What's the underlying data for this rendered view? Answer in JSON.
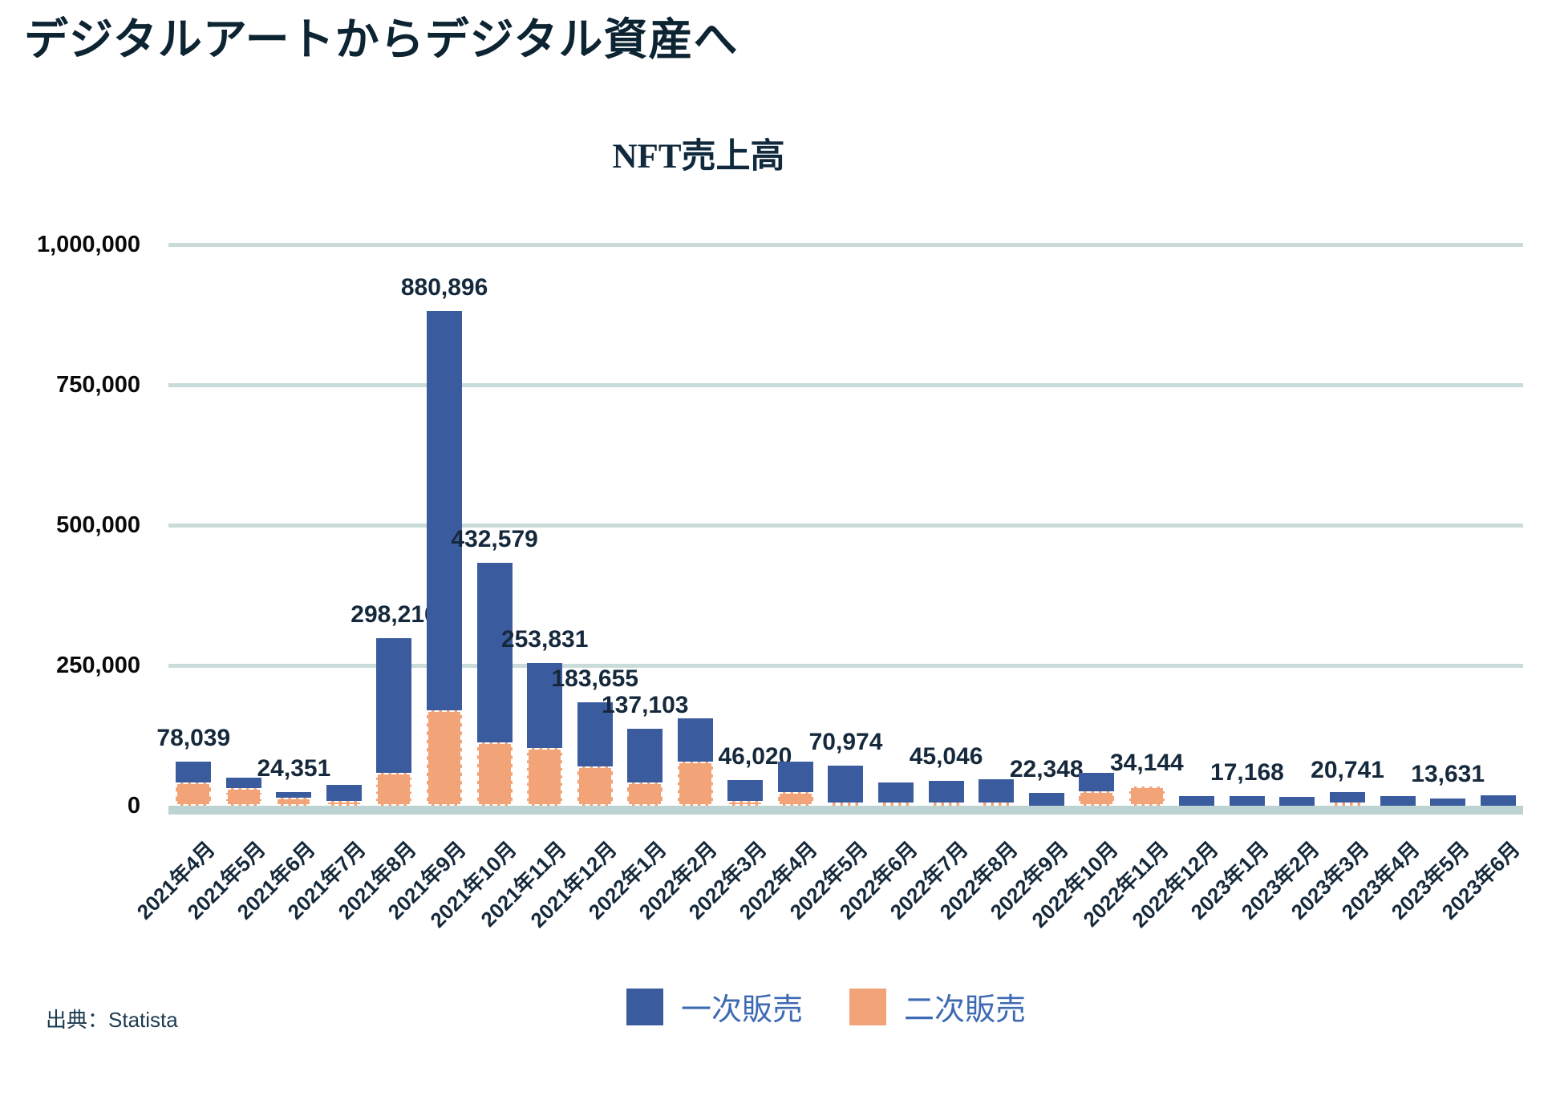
{
  "page": {
    "title": "デジタルアートからデジタル資産へ"
  },
  "chart_data": {
    "type": "bar",
    "stacked": true,
    "title": "NFT売上高",
    "xlabel": "",
    "ylabel": "",
    "ylim": [
      0,
      1000000
    ],
    "grid": true,
    "legend_position": "bottom",
    "y_ticks": [
      {
        "value": 1000000,
        "label": "1,000,000"
      },
      {
        "value": 750000,
        "label": "750,000"
      },
      {
        "value": 500000,
        "label": "500,000"
      },
      {
        "value": 250000,
        "label": "250,000"
      },
      {
        "value": 0,
        "label": "0"
      }
    ],
    "categories": [
      "2021年4月",
      "2021年5月",
      "2021年6月",
      "2021年7月",
      "2021年8月",
      "2021年9月",
      "2021年10月",
      "2021年11月",
      "2021年12月",
      "2022年1月",
      "2022年2月",
      "2022年3月",
      "2022年4月",
      "2022年5月",
      "2022年6月",
      "2022年7月",
      "2022年8月",
      "2022年9月",
      "2022年10月",
      "2022年11月",
      "2022年12月",
      "2023年1月",
      "2023年2月",
      "2023年3月",
      "2023年4月",
      "2023年5月",
      "2023年6月"
    ],
    "series": [
      {
        "name": "一次販売",
        "color": "#3a5c9e",
        "values": [
          36039,
          19000,
          10351,
          29000,
          240210,
          710896,
          319579,
          150831,
          113655,
          95103,
          78000,
          37020,
          53000,
          65974,
          36000,
          39046,
          41000,
          22348,
          32000,
          0,
          16500,
          17168,
          16000,
          18741,
          16500,
          13631,
          18000
        ]
      },
      {
        "name": "二次販売",
        "color": "#f2a478",
        "values": [
          42000,
          31000,
          14000,
          8000,
          58000,
          170000,
          113000,
          103000,
          70000,
          42000,
          78000,
          9000,
          25000,
          5000,
          3000,
          6000,
          3000,
          0,
          26000,
          34144,
          0,
          0,
          0,
          2000,
          0,
          0,
          0
        ]
      }
    ],
    "value_labels": [
      "78,039",
      null,
      "24,351",
      null,
      "298,210",
      "880,896",
      "432,579",
      "253,831",
      "183,655",
      "137,103",
      null,
      "46,020",
      null,
      "70,974",
      null,
      "45,046",
      null,
      "22,348",
      null,
      "34,144",
      null,
      "17,168",
      null,
      "20,741",
      null,
      "13,631",
      null
    ]
  },
  "legend": {
    "items": [
      {
        "label": "一次販売",
        "color": "#3a5c9e"
      },
      {
        "label": "二次販売",
        "color": "#f2a478"
      }
    ]
  },
  "source": {
    "text": "出典：Statista"
  },
  "colors": {
    "primary": "#3a5c9e",
    "secondary": "#f2a478",
    "gridline": "#c9dcda",
    "baseline": "#bdd3d1",
    "title_text": "#0d2433",
    "value_text": "#16293c",
    "legend_text": "#3e6ab3"
  }
}
